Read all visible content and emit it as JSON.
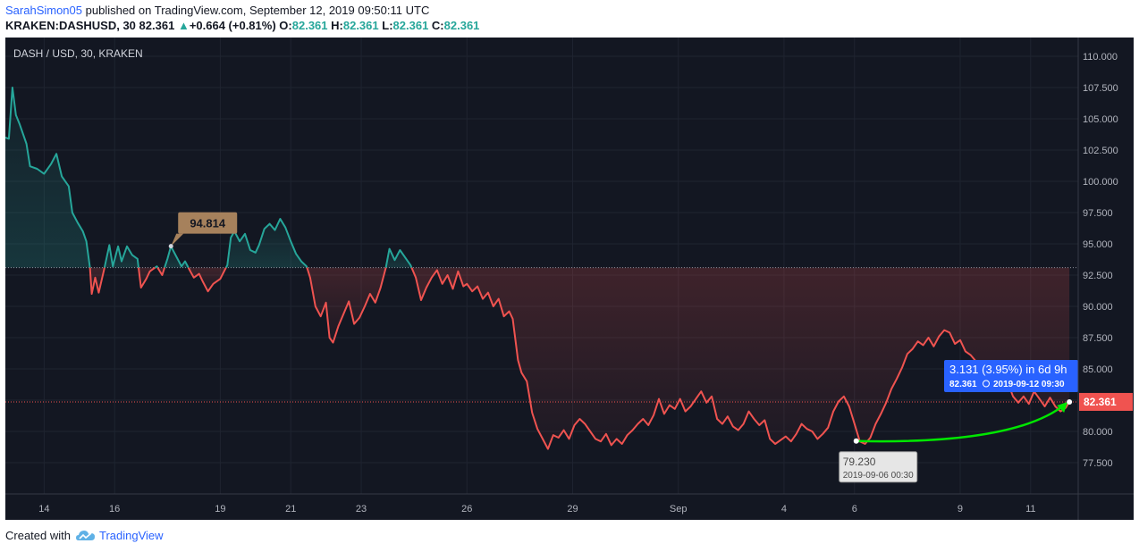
{
  "header": {
    "author": "SarahSimon05",
    "published_text": "published on TradingView.com, September 12, 2019 09:50:11 UTC",
    "symbol": "KRAKEN:DASHUSD, 30",
    "last": "82.361",
    "change_arrow": "▲",
    "change": "+0.664 (+0.81%)",
    "o_label": "O:",
    "o_value": "82.361",
    "h_label": "H:",
    "h_value": "82.361",
    "l_label": "L:",
    "l_value": "82.361",
    "c_label": "C:",
    "c_value": "82.361"
  },
  "footer": {
    "created_with": "Created with",
    "brand": "TradingView",
    "logo_icon": "tradingview-cloud-icon"
  },
  "colors": {
    "background": "#131722",
    "up": "#26a69a",
    "down": "#ef5350",
    "grid": "#1f2430",
    "axis_text": "#b2b5be",
    "price_label_bg": "#f05350",
    "callout_bg": "#a6815c",
    "measure_bg": "#2962ff",
    "arrow": "#00e600"
  },
  "chart_data": {
    "type": "line",
    "title": "DASH / USD, 30, KRAKEN",
    "xlabel": "",
    "ylabel": "",
    "grid": true,
    "baseline": 93.1,
    "current_price_label": "82.361",
    "current_price": 82.361,
    "x_range_days": [
      12.9,
      43.35
    ],
    "ylim": [
      75.0,
      111.5
    ],
    "y_ticks": [
      "77.500",
      "80.000",
      "82.500",
      "85.000",
      "87.500",
      "90.000",
      "92.500",
      "95.000",
      "97.500",
      "100.000",
      "102.500",
      "105.000",
      "107.500",
      "110.000"
    ],
    "x_ticks": [
      {
        "label": "14",
        "day": 14
      },
      {
        "label": "16",
        "day": 16
      },
      {
        "label": "19",
        "day": 19
      },
      {
        "label": "21",
        "day": 21
      },
      {
        "label": "23",
        "day": 23
      },
      {
        "label": "26",
        "day": 26
      },
      {
        "label": "29",
        "day": 29
      },
      {
        "label": "Sep",
        "day": 32
      },
      {
        "label": "4",
        "day": 35
      },
      {
        "label": "6",
        "day": 37
      },
      {
        "label": "9",
        "day": 40
      },
      {
        "label": "11",
        "day": 42
      }
    ],
    "series": [
      {
        "points": [
          [
            12.9,
            103.5
          ],
          [
            13.0,
            103.4
          ],
          [
            13.1,
            107.5
          ],
          [
            13.2,
            105.3
          ],
          [
            13.3,
            104.6
          ],
          [
            13.5,
            103.0
          ],
          [
            13.6,
            101.2
          ],
          [
            13.8,
            101.0
          ],
          [
            14.0,
            100.6
          ],
          [
            14.2,
            101.4
          ],
          [
            14.35,
            102.2
          ],
          [
            14.5,
            100.4
          ],
          [
            14.7,
            99.6
          ],
          [
            14.8,
            97.5
          ],
          [
            14.95,
            96.7
          ],
          [
            15.1,
            96.0
          ],
          [
            15.2,
            95.2
          ],
          [
            15.3,
            93.1
          ],
          [
            15.35,
            91.0
          ],
          [
            15.45,
            92.3
          ],
          [
            15.55,
            91.1
          ],
          [
            15.7,
            92.9
          ],
          [
            15.85,
            94.9
          ],
          [
            15.95,
            93.2
          ],
          [
            16.1,
            94.8
          ],
          [
            16.2,
            93.6
          ],
          [
            16.35,
            94.8
          ],
          [
            16.5,
            94.1
          ],
          [
            16.65,
            93.8
          ],
          [
            16.75,
            91.5
          ],
          [
            16.9,
            92.2
          ],
          [
            17.0,
            92.8
          ],
          [
            17.2,
            93.2
          ],
          [
            17.35,
            92.5
          ],
          [
            17.5,
            93.8
          ],
          [
            17.6,
            94.8
          ],
          [
            17.75,
            94.0
          ],
          [
            17.9,
            93.2
          ],
          [
            18.0,
            93.6
          ],
          [
            18.15,
            92.8
          ],
          [
            18.25,
            92.3
          ],
          [
            18.4,
            92.6
          ],
          [
            18.5,
            92.0
          ],
          [
            18.65,
            91.2
          ],
          [
            18.8,
            91.8
          ],
          [
            19.0,
            92.2
          ],
          [
            19.2,
            93.3
          ],
          [
            19.3,
            95.5
          ],
          [
            19.4,
            96.0
          ],
          [
            19.55,
            95.2
          ],
          [
            19.7,
            95.8
          ],
          [
            19.85,
            94.5
          ],
          [
            20.0,
            94.3
          ],
          [
            20.1,
            94.9
          ],
          [
            20.25,
            96.2
          ],
          [
            20.4,
            96.6
          ],
          [
            20.55,
            96.1
          ],
          [
            20.7,
            97.0
          ],
          [
            20.85,
            96.3
          ],
          [
            21.0,
            95.2
          ],
          [
            21.15,
            94.2
          ],
          [
            21.3,
            93.6
          ],
          [
            21.45,
            93.2
          ],
          [
            21.55,
            92.3
          ],
          [
            21.7,
            90.0
          ],
          [
            21.85,
            89.2
          ],
          [
            22.0,
            90.3
          ],
          [
            22.1,
            87.5
          ],
          [
            22.2,
            87.1
          ],
          [
            22.35,
            88.4
          ],
          [
            22.5,
            89.4
          ],
          [
            22.65,
            90.4
          ],
          [
            22.8,
            88.6
          ],
          [
            22.95,
            89.1
          ],
          [
            23.1,
            90.0
          ],
          [
            23.25,
            91.0
          ],
          [
            23.4,
            90.3
          ],
          [
            23.55,
            91.5
          ],
          [
            23.7,
            93.1
          ],
          [
            23.8,
            94.6
          ],
          [
            23.95,
            93.7
          ],
          [
            24.1,
            94.5
          ],
          [
            24.25,
            93.9
          ],
          [
            24.4,
            93.3
          ],
          [
            24.55,
            92.3
          ],
          [
            24.7,
            90.5
          ],
          [
            24.85,
            91.5
          ],
          [
            25.0,
            92.3
          ],
          [
            25.15,
            92.9
          ],
          [
            25.3,
            91.8
          ],
          [
            25.45,
            92.5
          ],
          [
            25.6,
            91.4
          ],
          [
            25.75,
            92.8
          ],
          [
            25.9,
            91.6
          ],
          [
            26.0,
            91.8
          ],
          [
            26.15,
            91.2
          ],
          [
            26.3,
            91.6
          ],
          [
            26.45,
            90.6
          ],
          [
            26.6,
            91.1
          ],
          [
            26.75,
            90.0
          ],
          [
            26.9,
            90.6
          ],
          [
            27.05,
            89.2
          ],
          [
            27.2,
            89.6
          ],
          [
            27.3,
            89.0
          ],
          [
            27.45,
            85.7
          ],
          [
            27.55,
            84.7
          ],
          [
            27.7,
            84.0
          ],
          [
            27.85,
            81.5
          ],
          [
            28.0,
            80.2
          ],
          [
            28.15,
            79.4
          ],
          [
            28.3,
            78.6
          ],
          [
            28.45,
            79.7
          ],
          [
            28.6,
            79.5
          ],
          [
            28.75,
            80.1
          ],
          [
            28.9,
            79.4
          ],
          [
            29.05,
            80.5
          ],
          [
            29.2,
            81.0
          ],
          [
            29.35,
            80.6
          ],
          [
            29.5,
            80.0
          ],
          [
            29.65,
            79.4
          ],
          [
            29.8,
            79.2
          ],
          [
            29.95,
            79.8
          ],
          [
            30.1,
            78.9
          ],
          [
            30.25,
            79.4
          ],
          [
            30.4,
            79.0
          ],
          [
            30.55,
            79.7
          ],
          [
            30.7,
            80.1
          ],
          [
            30.85,
            80.6
          ],
          [
            31.0,
            81.0
          ],
          [
            31.15,
            80.5
          ],
          [
            31.3,
            81.3
          ],
          [
            31.45,
            82.6
          ],
          [
            31.6,
            81.4
          ],
          [
            31.75,
            82.1
          ],
          [
            31.9,
            81.8
          ],
          [
            32.05,
            82.6
          ],
          [
            32.2,
            81.6
          ],
          [
            32.35,
            82.0
          ],
          [
            32.5,
            82.6
          ],
          [
            32.65,
            83.2
          ],
          [
            32.8,
            82.3
          ],
          [
            32.95,
            82.8
          ],
          [
            33.1,
            81.0
          ],
          [
            33.25,
            80.6
          ],
          [
            33.4,
            81.2
          ],
          [
            33.55,
            80.4
          ],
          [
            33.7,
            80.1
          ],
          [
            33.85,
            80.6
          ],
          [
            34.0,
            81.6
          ],
          [
            34.15,
            81.0
          ],
          [
            34.3,
            80.5
          ],
          [
            34.45,
            80.9
          ],
          [
            34.6,
            79.4
          ],
          [
            34.75,
            79.0
          ],
          [
            34.9,
            79.3
          ],
          [
            35.05,
            79.6
          ],
          [
            35.2,
            79.2
          ],
          [
            35.35,
            79.8
          ],
          [
            35.5,
            80.6
          ],
          [
            35.65,
            80.2
          ],
          [
            35.8,
            80.0
          ],
          [
            35.95,
            79.4
          ],
          [
            36.1,
            79.8
          ],
          [
            36.25,
            80.3
          ],
          [
            36.4,
            81.6
          ],
          [
            36.55,
            82.4
          ],
          [
            36.7,
            82.8
          ],
          [
            36.85,
            82.0
          ],
          [
            37.0,
            80.6
          ],
          [
            37.15,
            79.2
          ],
          [
            37.3,
            79.0
          ],
          [
            37.45,
            79.5
          ],
          [
            37.6,
            80.6
          ],
          [
            37.75,
            81.4
          ],
          [
            37.9,
            82.3
          ],
          [
            38.05,
            83.4
          ],
          [
            38.2,
            84.2
          ],
          [
            38.35,
            85.1
          ],
          [
            38.5,
            86.2
          ],
          [
            38.65,
            86.6
          ],
          [
            38.8,
            87.2
          ],
          [
            38.95,
            86.9
          ],
          [
            39.1,
            87.5
          ],
          [
            39.25,
            86.8
          ],
          [
            39.4,
            87.6
          ],
          [
            39.55,
            88.1
          ],
          [
            39.7,
            87.9
          ],
          [
            39.85,
            87.0
          ],
          [
            40.0,
            87.3
          ],
          [
            40.15,
            86.4
          ],
          [
            40.3,
            86.1
          ],
          [
            40.45,
            85.6
          ],
          [
            40.6,
            85.2
          ],
          [
            40.75,
            84.8
          ],
          [
            40.9,
            85.0
          ],
          [
            41.05,
            84.2
          ],
          [
            41.2,
            83.6
          ],
          [
            41.35,
            83.9
          ],
          [
            41.5,
            82.8
          ],
          [
            41.65,
            82.3
          ],
          [
            41.8,
            82.8
          ],
          [
            41.95,
            82.2
          ],
          [
            42.1,
            83.2
          ],
          [
            42.25,
            82.6
          ],
          [
            42.4,
            82.0
          ],
          [
            42.55,
            82.7
          ],
          [
            42.7,
            82.0
          ],
          [
            42.85,
            81.6
          ],
          [
            43.0,
            81.9
          ],
          [
            43.1,
            82.361
          ]
        ]
      }
    ],
    "annotations": {
      "callout": {
        "label": "94.814",
        "day": 17.6,
        "value": 94.814
      },
      "low_marker": {
        "value_label": "79.230",
        "date_label": "2019-09-06 00:30",
        "day": 37.05,
        "value": 79.23
      },
      "measure": {
        "line1": "3.131 (3.95%) in 6d 9h",
        "line2": "82.361",
        "line2_date": "2019-09-12  09:30",
        "from_day": 37.05,
        "from_value": 79.23,
        "to_day": 43.1,
        "to_value": 82.361
      }
    }
  }
}
